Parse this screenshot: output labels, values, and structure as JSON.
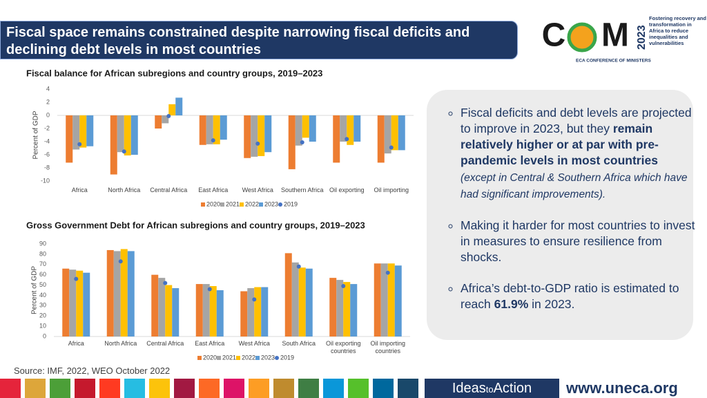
{
  "header": {
    "title": "Fiscal space remains constrained despite narrowing fiscal deficits and declining debt levels in most countries"
  },
  "logo": {
    "letter1": "C",
    "letter2": "M",
    "year": "2023",
    "tagline": "Fostering recovery and transformation in Africa to reduce inequalities and vulnerabilities",
    "name": "ECA CONFERENCE OF MINISTERS"
  },
  "chart_data": [
    {
      "type": "bar",
      "title": "Fiscal balance for African subregions and country groups, 2019–2023",
      "y_label": "Percent of GDP",
      "categories": [
        "Africa",
        "North Africa",
        "Central Africa",
        "East Africa",
        "West Africa",
        "Southern Africa",
        "Oil exporting",
        "Oil importing"
      ],
      "series": [
        {
          "name": "2020",
          "color": "#ed7d31",
          "values": [
            -7.2,
            -9.0,
            -2.0,
            -4.5,
            -6.5,
            -8.2,
            -7.2,
            -7.2
          ]
        },
        {
          "name": "2021",
          "color": "#a5a5a5",
          "values": [
            -5.2,
            -5.6,
            -1.2,
            -4.4,
            -6.3,
            -4.6,
            -4.0,
            -5.8
          ]
        },
        {
          "name": "2022",
          "color": "#ffc000",
          "values": [
            -4.9,
            -6.1,
            1.7,
            -4.4,
            -6.2,
            -3.4,
            -4.5,
            -5.3
          ]
        },
        {
          "name": "2023",
          "color": "#5b9bd5",
          "values": [
            -4.7,
            -6.0,
            2.7,
            -3.7,
            -5.6,
            -4.0,
            -4.0,
            -5.3
          ]
        },
        {
          "name": "2019",
          "color": "#4472c4",
          "type": "scatter",
          "values": [
            -4.4,
            -5.5,
            -0.1,
            -3.8,
            -4.3,
            -4.1,
            -3.6,
            -4.9
          ]
        }
      ],
      "ylim": [
        -10,
        4
      ],
      "yticks": [
        -10,
        -8,
        -6,
        -4,
        -2,
        0,
        2,
        4
      ],
      "grid": false,
      "legend": "bottom"
    },
    {
      "type": "bar",
      "title": "Gross Government Debt for African subregions and country groups, 2019–2023",
      "y_label": "Percent of GDP",
      "categories": [
        "Africa",
        "North Africa",
        "Central Africa",
        "East Africa",
        "West Africa",
        "South Africa",
        "Oil exporting countries",
        "Oil importing countries"
      ],
      "series": [
        {
          "name": "2020",
          "color": "#ed7d31",
          "values": [
            66,
            84,
            60,
            51,
            44,
            81,
            57,
            71
          ]
        },
        {
          "name": "2021",
          "color": "#a5a5a5",
          "values": [
            65,
            83,
            57,
            51,
            47,
            72,
            55,
            71
          ]
        },
        {
          "name": "2022",
          "color": "#ffc000",
          "values": [
            64,
            85,
            50,
            49,
            48,
            67,
            53,
            71
          ]
        },
        {
          "name": "2023",
          "color": "#5b9bd5",
          "values": [
            62,
            83,
            47,
            45,
            48,
            66,
            51,
            69
          ]
        },
        {
          "name": "2019",
          "color": "#4472c4",
          "type": "scatter",
          "values": [
            56,
            73,
            52,
            46,
            36,
            68,
            49,
            62
          ]
        }
      ],
      "ylim": [
        0,
        90
      ],
      "yticks": [
        0,
        10,
        20,
        30,
        40,
        50,
        60,
        70,
        80,
        90
      ],
      "grid": false,
      "legend": "bottom"
    }
  ],
  "bullets": [
    [
      {
        "text": "Fiscal deficits and debt levels are projected to improve in 2023, but they "
      },
      {
        "text": "remain relatively higher or at par with pre-pandemic levels in most countries",
        "style": "bold"
      },
      {
        "text": " (except in Central & Southern Africa which have had significant improvements).",
        "style": "italic"
      }
    ],
    [
      {
        "text": "Making it harder for most countries to invest in measures to ensure resilience from shocks."
      }
    ],
    [
      {
        "text": "Africa’s debt-to-GDP ratio is estimated to reach "
      },
      {
        "text": "61.9%",
        "style": "bold"
      },
      {
        "text": " in 2023."
      }
    ]
  ],
  "source": "Source: IMF, 2022, WEO October 2022",
  "footer": {
    "campaign": [
      "Ideas",
      "to",
      "Action"
    ],
    "url": "www.uneca.org"
  }
}
